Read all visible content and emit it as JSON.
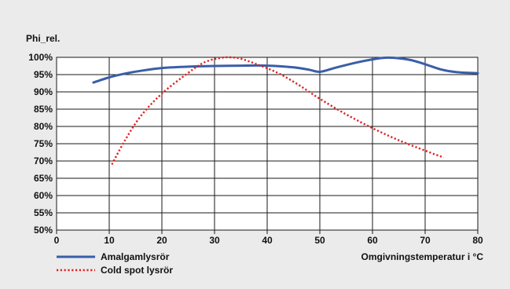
{
  "chart_data": {
    "type": "line",
    "ylabel": "Phi_rel.",
    "xlabel": "Omgivningstemperatur i °C",
    "xlim": [
      0,
      80
    ],
    "ylim": [
      50,
      100
    ],
    "x_ticks": [
      "0",
      "10",
      "20",
      "30",
      "40",
      "50",
      "60",
      "70",
      "80"
    ],
    "y_ticks": [
      "50%",
      "55%",
      "60%",
      "65%",
      "70%",
      "75%",
      "80%",
      "85%",
      "90%",
      "95%",
      "100%"
    ],
    "grid": true,
    "legend_position": "bottom-left",
    "series": [
      {
        "name": "Amalgamlysrör",
        "color": "#3a5ea8",
        "style": "solid",
        "x": [
          7,
          10,
          13,
          16,
          20,
          25,
          30,
          35,
          40,
          45,
          48,
          50,
          53,
          57,
          60,
          63,
          67,
          70,
          73,
          76,
          80
        ],
        "y": [
          92.7,
          94.2,
          95.3,
          96.1,
          96.9,
          97.3,
          97.5,
          97.6,
          97.6,
          97.1,
          96.4,
          95.8,
          97.0,
          98.5,
          99.4,
          99.9,
          99.3,
          98.0,
          96.5,
          95.7,
          95.4
        ]
      },
      {
        "name": "Cold spot lysrör",
        "color": "#e02020",
        "style": "dotted",
        "x": [
          10.5,
          13,
          16,
          20,
          25,
          28,
          31,
          33,
          35,
          38,
          42,
          46,
          50,
          55,
          60,
          65,
          70,
          73.5
        ],
        "y": [
          69.0,
          76.0,
          83.0,
          89.5,
          95.5,
          98.5,
          99.8,
          100.0,
          99.6,
          98.0,
          95.5,
          92.0,
          88.0,
          83.5,
          79.5,
          76.0,
          73.0,
          71.0
        ]
      }
    ]
  }
}
